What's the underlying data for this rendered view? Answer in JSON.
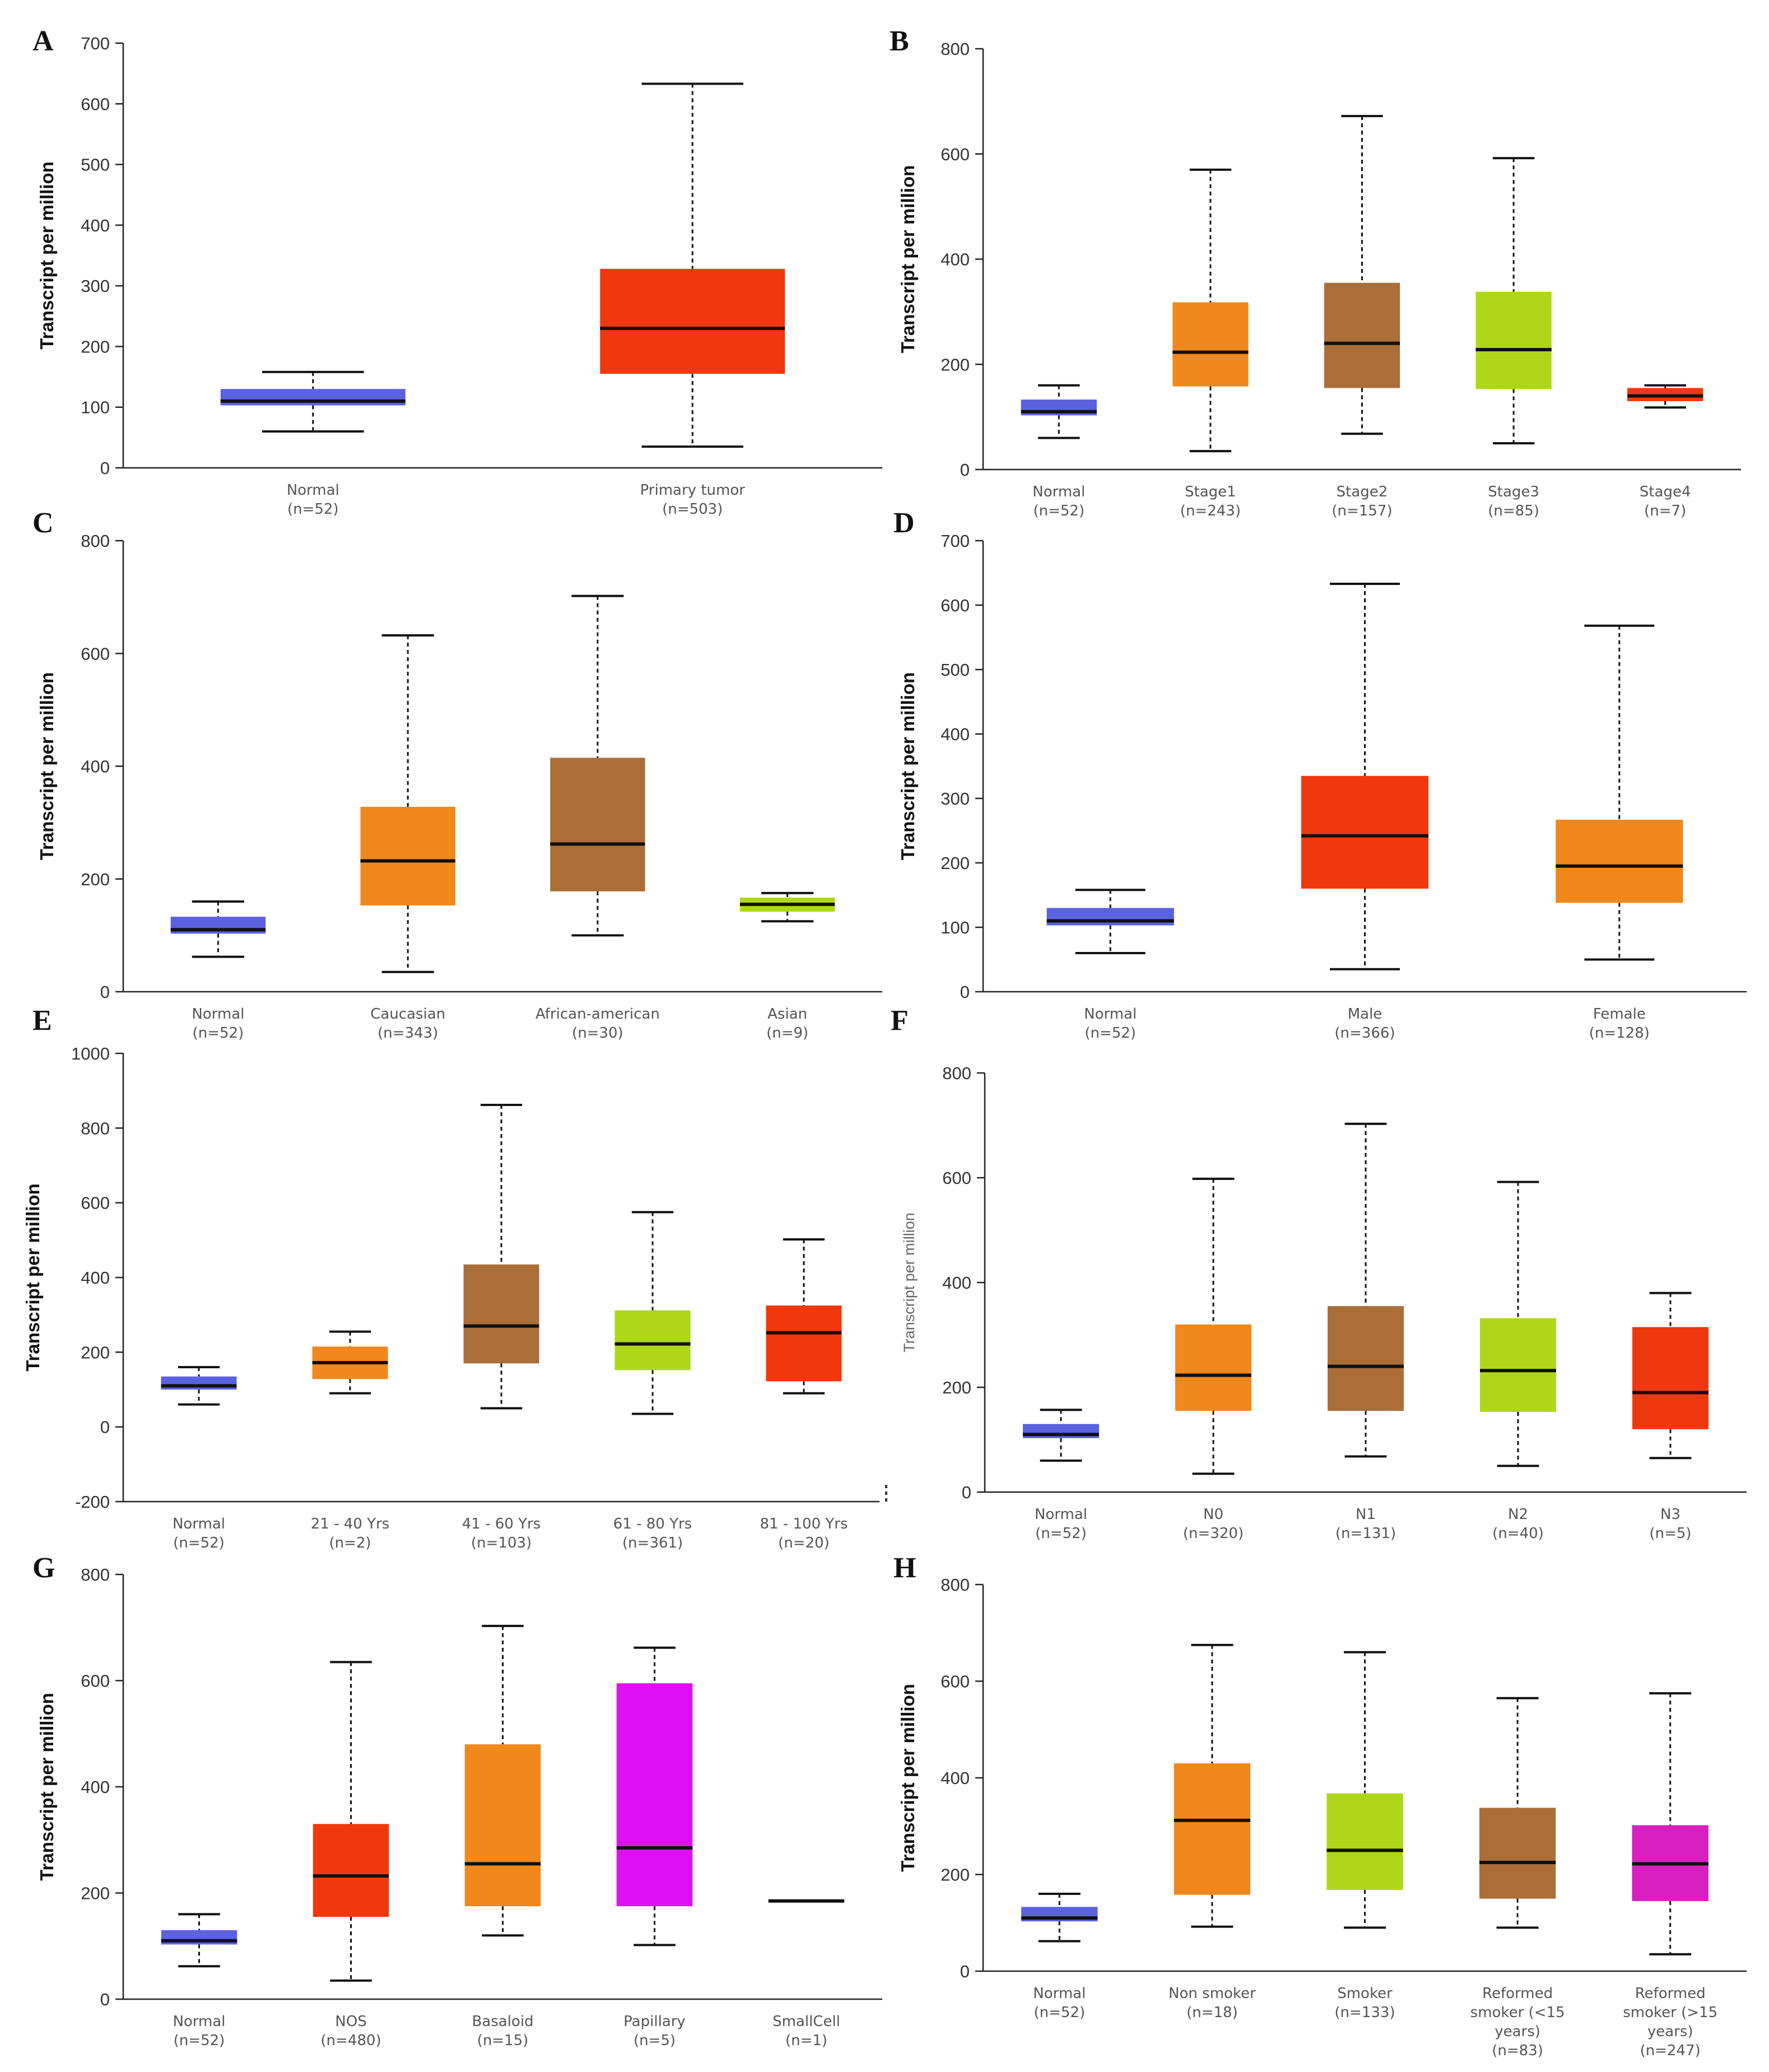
{
  "chart_data": [
    {
      "type": "box",
      "panel": "A",
      "ylabel": "Transcript per million",
      "ylim": [
        0,
        700
      ],
      "yticks": [
        0,
        100,
        200,
        300,
        400,
        500,
        600,
        700
      ],
      "groups": [
        {
          "name": "Normal",
          "n": "(n=52)",
          "min": 60,
          "q1": 103,
          "median": 110,
          "q3": 130,
          "max": 158,
          "color": "#5a62e0"
        },
        {
          "name": "Primary tumor",
          "n": "(n=503)",
          "min": 35,
          "q1": 155,
          "median": 230,
          "q3": 328,
          "max": 633,
          "color": "#f0380e"
        }
      ]
    },
    {
      "type": "box",
      "panel": "B",
      "ylabel": "Transcript per million",
      "ylim": [
        0,
        800
      ],
      "yticks": [
        0,
        200,
        400,
        600,
        800
      ],
      "groups": [
        {
          "name": "Normal",
          "n": "(n=52)",
          "min": 60,
          "q1": 103,
          "median": 110,
          "q3": 133,
          "max": 160,
          "color": "#5a62e0"
        },
        {
          "name": "Stage1",
          "n": "(n=243)",
          "min": 35,
          "q1": 158,
          "median": 223,
          "q3": 318,
          "max": 570,
          "color": "#f0881e"
        },
        {
          "name": "Stage2",
          "n": "(n=157)",
          "min": 68,
          "q1": 155,
          "median": 240,
          "q3": 355,
          "max": 672,
          "color": "#ab6e38"
        },
        {
          "name": "Stage3",
          "n": "(n=85)",
          "min": 50,
          "q1": 153,
          "median": 228,
          "q3": 338,
          "max": 592,
          "color": "#aed719"
        },
        {
          "name": "Stage4",
          "n": "(n=7)",
          "min": 118,
          "q1": 130,
          "median": 140,
          "q3": 155,
          "max": 160,
          "color": "#f0380e"
        }
      ]
    },
    {
      "type": "box",
      "panel": "C",
      "ylabel": "Transcript per million",
      "ylim": [
        0,
        800
      ],
      "yticks": [
        0,
        200,
        400,
        600,
        800
      ],
      "groups": [
        {
          "name": "Normal",
          "n": "(n=52)",
          "min": 62,
          "q1": 103,
          "median": 110,
          "q3": 133,
          "max": 160,
          "color": "#5a62e0"
        },
        {
          "name": "Caucasian",
          "n": "(n=343)",
          "min": 35,
          "q1": 153,
          "median": 232,
          "q3": 328,
          "max": 632,
          "color": "#f0881e"
        },
        {
          "name": "African-american",
          "n": "(n=30)",
          "min": 100,
          "q1": 178,
          "median": 262,
          "q3": 415,
          "max": 702,
          "color": "#ab6e38"
        },
        {
          "name": "Asian",
          "n": "(n=9)",
          "min": 125,
          "q1": 142,
          "median": 155,
          "q3": 167,
          "max": 175,
          "color": "#aed719"
        }
      ]
    },
    {
      "type": "box",
      "panel": "D",
      "ylabel": "Transcript per million",
      "ylim": [
        0,
        700
      ],
      "yticks": [
        0,
        100,
        200,
        300,
        400,
        500,
        600,
        700
      ],
      "groups": [
        {
          "name": "Normal",
          "n": "(n=52)",
          "min": 60,
          "q1": 103,
          "median": 110,
          "q3": 130,
          "max": 158,
          "color": "#5a62e0"
        },
        {
          "name": "Male",
          "n": "(n=366)",
          "min": 35,
          "q1": 160,
          "median": 242,
          "q3": 335,
          "max": 633,
          "color": "#f0380e"
        },
        {
          "name": "Female",
          "n": "(n=128)",
          "min": 50,
          "q1": 138,
          "median": 195,
          "q3": 267,
          "max": 568,
          "color": "#f0881e"
        }
      ]
    },
    {
      "type": "box",
      "panel": "E",
      "ylabel": "Transcript per million",
      "ylim": [
        -200,
        1000
      ],
      "yticks": [
        -200,
        0,
        200,
        400,
        600,
        800,
        1000
      ],
      "groups": [
        {
          "name": "Normal",
          "n": "(n=52)",
          "min": 60,
          "q1": 100,
          "median": 110,
          "q3": 135,
          "max": 160,
          "color": "#5a62e0"
        },
        {
          "name": "21 - 40 Yrs",
          "n": "(n=2)",
          "min": 90,
          "q1": 128,
          "median": 172,
          "q3": 215,
          "max": 255,
          "color": "#f0881e"
        },
        {
          "name": "41 - 60 Yrs",
          "n": "(n=103)",
          "min": 50,
          "q1": 170,
          "median": 270,
          "q3": 435,
          "max": 862,
          "color": "#ab6e38"
        },
        {
          "name": "61 - 80 Yrs",
          "n": "(n=361)",
          "min": 35,
          "q1": 152,
          "median": 222,
          "q3": 312,
          "max": 575,
          "color": "#aed719"
        },
        {
          "name": "81 - 100 Yrs",
          "n": "(n=20)",
          "min": 90,
          "q1": 122,
          "median": 252,
          "q3": 325,
          "max": 502,
          "color": "#f0380e"
        }
      ]
    },
    {
      "type": "box",
      "panel": "F",
      "ylabel": "Transcript per million",
      "ylim": [
        0,
        800
      ],
      "yticks": [
        0,
        200,
        400,
        600,
        800
      ],
      "groups": [
        {
          "name": "Normal",
          "n": "(n=52)",
          "min": 60,
          "q1": 103,
          "median": 110,
          "q3": 130,
          "max": 157,
          "color": "#5a62e0"
        },
        {
          "name": "N0",
          "n": "(n=320)",
          "min": 35,
          "q1": 155,
          "median": 223,
          "q3": 320,
          "max": 598,
          "color": "#f0881e"
        },
        {
          "name": "N1",
          "n": "(n=131)",
          "min": 68,
          "q1": 155,
          "median": 240,
          "q3": 355,
          "max": 703,
          "color": "#ab6e38"
        },
        {
          "name": "N2",
          "n": "(n=40)",
          "min": 50,
          "q1": 153,
          "median": 232,
          "q3": 332,
          "max": 592,
          "color": "#aed719"
        },
        {
          "name": "N3",
          "n": "(n=5)",
          "min": 65,
          "q1": 120,
          "median": 190,
          "q3": 315,
          "max": 380,
          "color": "#f0380e"
        }
      ]
    },
    {
      "type": "box",
      "panel": "G",
      "ylabel": "Transcript per million",
      "ylim": [
        0,
        800
      ],
      "yticks": [
        0,
        200,
        400,
        600,
        800
      ],
      "groups": [
        {
          "name": "Normal",
          "n": "(n=52)",
          "min": 62,
          "q1": 103,
          "median": 110,
          "q3": 130,
          "max": 160,
          "color": "#5a62e0"
        },
        {
          "name": "NOS",
          "n": "(n=480)",
          "min": 35,
          "q1": 155,
          "median": 232,
          "q3": 330,
          "max": 635,
          "color": "#f0380e"
        },
        {
          "name": "Basaloid",
          "n": "(n=15)",
          "min": 120,
          "q1": 175,
          "median": 255,
          "q3": 480,
          "max": 703,
          "color": "#f0881e"
        },
        {
          "name": "Papillary",
          "n": "(n=5)",
          "min": 102,
          "q1": 175,
          "median": 285,
          "q3": 595,
          "max": 662,
          "color": "#dd10f2"
        },
        {
          "name": "SmallCell",
          "n": "(n=1)",
          "min": 185,
          "q1": 185,
          "median": 185,
          "q3": 185,
          "max": 185,
          "color": "#111111"
        }
      ]
    },
    {
      "type": "box",
      "panel": "H",
      "ylabel": "Transcript per million",
      "ylim": [
        0,
        800
      ],
      "yticks": [
        0,
        200,
        400,
        600,
        800
      ],
      "groups": [
        {
          "name": "Normal",
          "n": "(n=52)",
          "min": 62,
          "q1": 103,
          "median": 110,
          "q3": 133,
          "max": 160,
          "color": "#5a62e0"
        },
        {
          "name": "Non smoker",
          "n": "(n=18)",
          "min": 92,
          "q1": 158,
          "median": 312,
          "q3": 430,
          "max": 675,
          "color": "#f0881e"
        },
        {
          "name": "Smoker",
          "n": "(n=133)",
          "min": 90,
          "q1": 168,
          "median": 250,
          "q3": 368,
          "max": 660,
          "color": "#aed719"
        },
        {
          "name": "Reformed smoker (<15 years)",
          "label_lines": [
            "Reformed",
            "smoker (<15",
            "years)"
          ],
          "n": "(n=83)",
          "min": 90,
          "q1": 150,
          "median": 225,
          "q3": 338,
          "max": 565,
          "color": "#ab6e38"
        },
        {
          "name": "Reformed smoker (>15 years)",
          "label_lines": [
            "Reformed",
            "smoker (>15",
            "years)"
          ],
          "n": "(n=247)",
          "min": 35,
          "q1": 145,
          "median": 222,
          "q3": 302,
          "max": 575,
          "color": "#d820c0"
        }
      ]
    }
  ]
}
